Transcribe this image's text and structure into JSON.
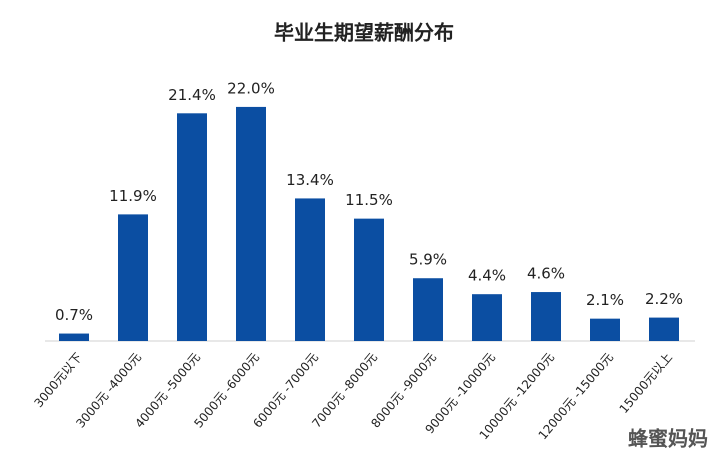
{
  "chart_data": {
    "type": "bar",
    "title": "毕业生期望薪酬分布",
    "categories": [
      "3000元以下",
      "3000元 -4000元",
      "4000元 -5000元",
      "5000元 -6000元",
      "6000元 -7000元",
      "7000元 -8000元",
      "8000元 -9000元",
      "9000元 -10000元",
      "10000元 -12000元",
      "12000元 -15000元",
      "15000元以上"
    ],
    "values": [
      0.7,
      11.9,
      21.4,
      22.0,
      13.4,
      11.5,
      5.9,
      4.4,
      4.6,
      2.1,
      2.2
    ],
    "value_labels": [
      "0.7%",
      "11.9%",
      "21.4%",
      "22.0%",
      "13.4%",
      "11.5%",
      "5.9%",
      "4.4%",
      "4.6%",
      "2.1%",
      "2.2%"
    ],
    "color": "#0b4ea2"
  },
  "watermark": "蜂蜜妈妈"
}
